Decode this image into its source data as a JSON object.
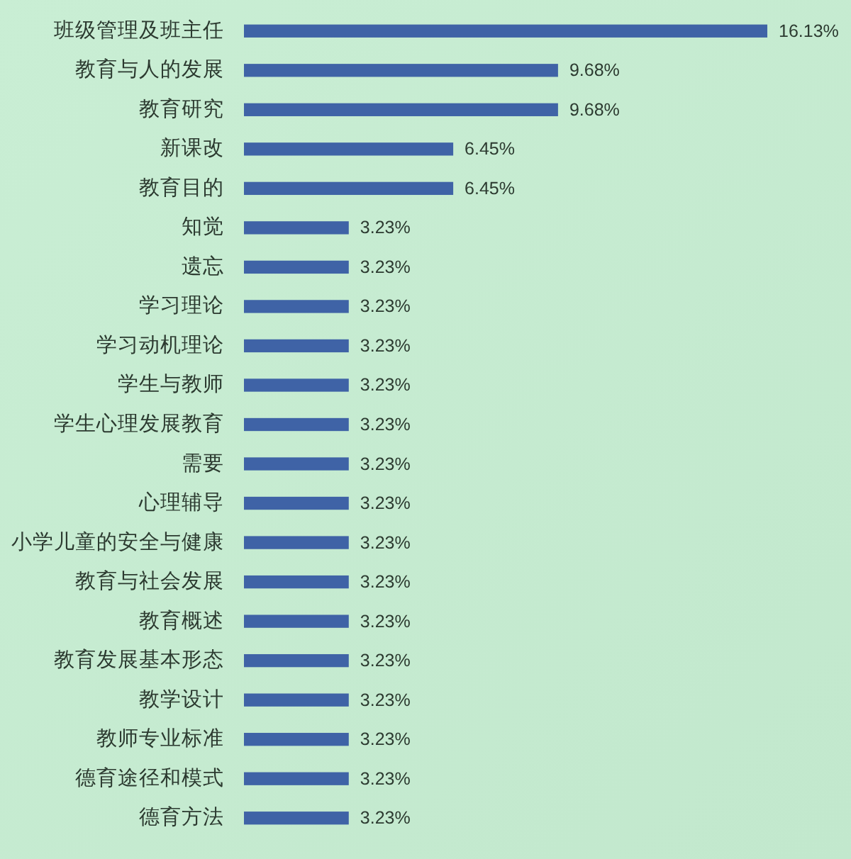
{
  "chart_data": {
    "type": "bar",
    "orientation": "horizontal",
    "categories": [
      "班级管理及班主任",
      "教育与人的发展",
      "教育研究",
      "新课改",
      "教育目的",
      "知觉",
      "遗忘",
      "学习理论",
      "学习动机理论",
      "学生与教师",
      "学生心理发展教育",
      "需要",
      "心理辅导",
      "小学儿童的安全与健康",
      "教育与社会发展",
      "教育概述",
      "教育发展基本形态",
      "教学设计",
      "教师专业标准",
      "德育途径和模式",
      "德育方法"
    ],
    "values": [
      16.13,
      9.68,
      9.68,
      6.45,
      6.45,
      3.23,
      3.23,
      3.23,
      3.23,
      3.23,
      3.23,
      3.23,
      3.23,
      3.23,
      3.23,
      3.23,
      3.23,
      3.23,
      3.23,
      3.23,
      3.23
    ],
    "value_labels": [
      "16.13%",
      "9.68%",
      "9.68%",
      "6.45%",
      "6.45%",
      "3.23%",
      "3.23%",
      "3.23%",
      "3.23%",
      "3.23%",
      "3.23%",
      "3.23%",
      "3.23%",
      "3.23%",
      "3.23%",
      "3.23%",
      "3.23%",
      "3.23%",
      "3.23%",
      "3.23%",
      "3.23%"
    ],
    "color": "#3f63a6"
  }
}
